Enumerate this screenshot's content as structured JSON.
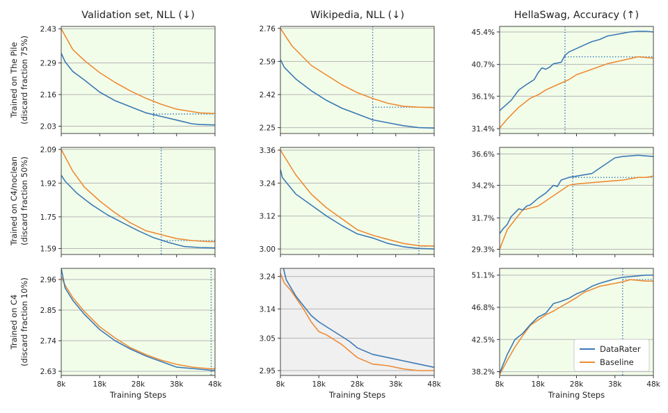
{
  "figure": {
    "column_titles": [
      "Validation set, NLL (↓)",
      "Wikipedia, NLL (↓)",
      "HellaSwag, Accuracy (↑)"
    ],
    "row_labels": [
      [
        "Trained on The Pile",
        "(discard fraction 75%)"
      ],
      [
        "Trained on C4/noclean",
        "(discard fraction 50%)"
      ],
      [
        "Trained on C4",
        "(discard fraction 10%)"
      ]
    ],
    "xlabel": "Training Steps",
    "legend": {
      "placement": "lower-right",
      "entries": [
        "DataRater",
        "Baseline"
      ]
    },
    "colors": {
      "DataRater": "#3a78b5",
      "Baseline": "#ee8a33",
      "bg_better": "#f2fde9",
      "bg_worse": "#f0f0f0",
      "grid": "#b5b5b5",
      "marker": "#3a78b5"
    }
  },
  "chart_data": [
    {
      "type": "line",
      "row": 0,
      "col": 0,
      "xticks": [
        "8k",
        "18k",
        "28k",
        "38k",
        "48k"
      ],
      "yticks": [
        "2.03",
        "2.16",
        "2.29",
        "2.43"
      ],
      "xlim": [
        8,
        48
      ],
      "ylim": [
        2.0,
        2.44
      ],
      "background": "better",
      "match_step": 32,
      "match_value": 2.08,
      "series": [
        {
          "name": "DataRater",
          "x": [
            8,
            9,
            11,
            14,
            18,
            22,
            26,
            30,
            34,
            38,
            42,
            44,
            48
          ],
          "y": [
            2.33,
            2.295,
            2.255,
            2.22,
            2.17,
            2.135,
            2.11,
            2.085,
            2.07,
            2.055,
            2.04,
            2.037,
            2.035
          ]
        },
        {
          "name": "Baseline",
          "x": [
            8,
            11,
            14,
            18,
            22,
            26,
            30,
            34,
            38,
            42,
            44,
            48
          ],
          "y": [
            2.43,
            2.345,
            2.3,
            2.25,
            2.21,
            2.175,
            2.145,
            2.12,
            2.1,
            2.09,
            2.085,
            2.082
          ]
        }
      ]
    },
    {
      "type": "line",
      "row": 0,
      "col": 1,
      "xticks": [
        "8k",
        "18k",
        "28k",
        "38k",
        "48k"
      ],
      "yticks": [
        "2.25",
        "2.42",
        "2.59",
        "2.76"
      ],
      "xlim": [
        8,
        48
      ],
      "ylim": [
        2.22,
        2.77
      ],
      "background": "better",
      "match_step": 32,
      "match_value": 2.355,
      "series": [
        {
          "name": "DataRater",
          "x": [
            8,
            9,
            12,
            16,
            20,
            24,
            28,
            32,
            36,
            40,
            44,
            48
          ],
          "y": [
            2.6,
            2.56,
            2.5,
            2.44,
            2.39,
            2.35,
            2.32,
            2.29,
            2.275,
            2.26,
            2.25,
            2.248
          ]
        },
        {
          "name": "Baseline",
          "x": [
            8,
            11,
            16,
            20,
            24,
            28,
            32,
            36,
            40,
            44,
            48
          ],
          "y": [
            2.76,
            2.67,
            2.57,
            2.52,
            2.47,
            2.43,
            2.4,
            2.375,
            2.36,
            2.355,
            2.353
          ]
        }
      ]
    },
    {
      "type": "line",
      "row": 0,
      "col": 2,
      "xticks": [
        "8k",
        "18k",
        "28k",
        "38k",
        "48k"
      ],
      "yticks": [
        "31.4%",
        "36.1%",
        "40.7%",
        "45.4%"
      ],
      "xlim": [
        8,
        48
      ],
      "ylim": [
        30.7,
        46.2
      ],
      "background": "better",
      "match_step": 25,
      "match_value": 41.8,
      "series": [
        {
          "name": "DataRater",
          "x": [
            8,
            9,
            10,
            11,
            13,
            15,
            17,
            18,
            19,
            20,
            21,
            22,
            24,
            25,
            26,
            28,
            30,
            32,
            34,
            36,
            38,
            40,
            42,
            44,
            46,
            48
          ],
          "y": [
            34.0,
            34.5,
            35.0,
            35.5,
            37.0,
            37.8,
            38.5,
            39.5,
            40.2,
            40.0,
            40.3,
            40.8,
            41.0,
            42.0,
            42.5,
            43.0,
            43.5,
            44.0,
            44.3,
            44.8,
            45.0,
            45.2,
            45.4,
            45.5,
            45.5,
            45.4
          ]
        },
        {
          "name": "Baseline",
          "x": [
            8,
            10,
            13,
            16,
            18,
            20,
            22,
            24,
            26,
            28,
            32,
            36,
            40,
            44,
            48
          ],
          "y": [
            31.5,
            32.8,
            34.5,
            35.8,
            36.3,
            37.0,
            37.5,
            38.0,
            38.5,
            39.2,
            40.0,
            40.8,
            41.3,
            41.8,
            41.6
          ]
        }
      ]
    },
    {
      "type": "line",
      "row": 1,
      "col": 0,
      "xticks": [
        "8k",
        "18k",
        "28k",
        "38k",
        "48k"
      ],
      "yticks": [
        "1.59",
        "1.75",
        "1.92",
        "2.09"
      ],
      "xlim": [
        8,
        48
      ],
      "ylim": [
        1.56,
        2.1
      ],
      "background": "better",
      "match_step": 34,
      "match_value": 1.63,
      "series": [
        {
          "name": "DataRater",
          "x": [
            8,
            9,
            12,
            16,
            20,
            24,
            28,
            32,
            36,
            40,
            44,
            48
          ],
          "y": [
            1.96,
            1.93,
            1.87,
            1.81,
            1.76,
            1.72,
            1.68,
            1.645,
            1.62,
            1.6,
            1.595,
            1.593
          ]
        },
        {
          "name": "Baseline",
          "x": [
            8,
            11,
            14,
            18,
            22,
            26,
            30,
            34,
            38,
            42,
            46,
            48
          ],
          "y": [
            2.09,
            1.98,
            1.9,
            1.83,
            1.77,
            1.72,
            1.68,
            1.66,
            1.64,
            1.63,
            1.625,
            1.625
          ]
        }
      ]
    },
    {
      "type": "line",
      "row": 1,
      "col": 1,
      "xticks": [
        "8k",
        "18k",
        "28k",
        "38k",
        "48k"
      ],
      "yticks": [
        "3.00",
        "3.12",
        "3.24",
        "3.36"
      ],
      "xlim": [
        8,
        48
      ],
      "ylim": [
        2.98,
        3.37
      ],
      "background": "better",
      "match_step": 44,
      "match_value": 3.01,
      "series": [
        {
          "name": "DataRater",
          "x": [
            8,
            8.5,
            12,
            16,
            20,
            24,
            28,
            32,
            36,
            40,
            44,
            48
          ],
          "y": [
            3.29,
            3.26,
            3.2,
            3.16,
            3.12,
            3.085,
            3.055,
            3.04,
            3.02,
            3.008,
            3.002,
            3.0
          ]
        },
        {
          "name": "Baseline",
          "x": [
            8,
            12,
            16,
            20,
            24,
            28,
            32,
            36,
            40,
            44,
            48
          ],
          "y": [
            3.36,
            3.27,
            3.2,
            3.15,
            3.11,
            3.07,
            3.05,
            3.035,
            3.02,
            3.012,
            3.011
          ]
        }
      ]
    },
    {
      "type": "line",
      "row": 1,
      "col": 2,
      "xticks": [
        "8k",
        "18k",
        "28k",
        "38k",
        "48k"
      ],
      "yticks": [
        "29.3%",
        "31.7%",
        "34.2%",
        "36.6%"
      ],
      "xlim": [
        8,
        48
      ],
      "ylim": [
        28.9,
        37.1
      ],
      "background": "better",
      "match_step": 27,
      "match_value": 34.8,
      "series": [
        {
          "name": "DataRater",
          "x": [
            8,
            9,
            10,
            11,
            12,
            13,
            14,
            15,
            16,
            18,
            20,
            22,
            23,
            24,
            25,
            26,
            28,
            30,
            32,
            34,
            36,
            38,
            40,
            42,
            44,
            46,
            48
          ],
          "y": [
            30.5,
            30.9,
            31.2,
            31.8,
            32.1,
            32.4,
            32.3,
            32.6,
            32.7,
            33.2,
            33.6,
            34.2,
            34.1,
            34.6,
            34.7,
            34.8,
            34.9,
            35.0,
            35.1,
            35.5,
            35.9,
            36.3,
            36.4,
            36.45,
            36.5,
            36.45,
            36.4
          ]
        },
        {
          "name": "Baseline",
          "x": [
            8,
            10,
            14,
            18,
            22,
            26,
            28,
            32,
            36,
            40,
            44,
            46,
            48
          ],
          "y": [
            29.3,
            30.8,
            32.3,
            32.6,
            33.4,
            34.2,
            34.3,
            34.4,
            34.5,
            34.6,
            34.8,
            34.8,
            34.9
          ]
        }
      ]
    },
    {
      "type": "line",
      "row": 2,
      "col": 0,
      "xticks": [
        "8k",
        "18k",
        "28k",
        "38k",
        "48k"
      ],
      "yticks": [
        "2.63",
        "2.74",
        "2.85",
        "2.96"
      ],
      "xlim": [
        8,
        48
      ],
      "ylim": [
        2.615,
        3.0
      ],
      "background": "better",
      "match_step": 47,
      "match_value": 2.64,
      "series": [
        {
          "name": "DataRater",
          "x": [
            8,
            9,
            11,
            14,
            18,
            22,
            26,
            30,
            34,
            38,
            42,
            46,
            48
          ],
          "y": [
            3.0,
            2.93,
            2.885,
            2.835,
            2.78,
            2.74,
            2.71,
            2.685,
            2.665,
            2.645,
            2.64,
            2.635,
            2.632
          ]
        },
        {
          "name": "Baseline",
          "x": [
            8,
            9,
            11,
            14,
            18,
            22,
            26,
            30,
            34,
            38,
            42,
            46,
            48
          ],
          "y": [
            2.97,
            2.94,
            2.895,
            2.845,
            2.79,
            2.75,
            2.715,
            2.69,
            2.67,
            2.655,
            2.645,
            2.64,
            2.638
          ]
        }
      ]
    },
    {
      "type": "line",
      "row": 2,
      "col": 1,
      "xticks": [
        "8k",
        "18k",
        "28k",
        "38k",
        "48k"
      ],
      "yticks": [
        "2.95",
        "3.05",
        "3.14",
        "3.24"
      ],
      "xlim": [
        8,
        48
      ],
      "ylim": [
        2.935,
        3.265
      ],
      "background": "worse",
      "series": [
        {
          "name": "DataRater",
          "x": [
            8.8,
            9.5,
            10.5,
            12,
            14,
            16,
            18,
            20,
            22,
            24,
            26,
            28,
            32,
            36,
            40,
            44,
            48
          ],
          "y": [
            3.265,
            3.23,
            3.21,
            3.18,
            3.15,
            3.12,
            3.1,
            3.085,
            3.07,
            3.055,
            3.04,
            3.02,
            3.0,
            2.99,
            2.98,
            2.97,
            2.96
          ]
        },
        {
          "name": "Baseline",
          "x": [
            8,
            9,
            10.5,
            12,
            14,
            16,
            18,
            20,
            22,
            24,
            26,
            28,
            32,
            36,
            40,
            44,
            48
          ],
          "y": [
            3.25,
            3.22,
            3.2,
            3.175,
            3.14,
            3.1,
            3.07,
            3.06,
            3.045,
            3.03,
            3.01,
            2.99,
            2.97,
            2.965,
            2.955,
            2.95,
            2.95
          ]
        }
      ]
    },
    {
      "type": "line",
      "row": 2,
      "col": 2,
      "xticks": [
        "8k",
        "18k",
        "28k",
        "38k",
        "48k"
      ],
      "yticks": [
        "38.2%",
        "42.5%",
        "46.8%",
        "51.1%"
      ],
      "xlim": [
        8,
        48
      ],
      "ylim": [
        37.7,
        52.0
      ],
      "background": "better",
      "match_step": 40,
      "match_value": 50.5,
      "series": [
        {
          "name": "DataRater",
          "x": [
            8,
            10,
            12,
            14,
            16,
            18,
            20,
            22,
            24,
            26,
            28,
            30,
            32,
            34,
            36,
            38,
            40,
            42,
            44,
            46,
            48
          ],
          "y": [
            38.0,
            40.5,
            42.5,
            43.3,
            44.5,
            45.5,
            46.0,
            47.3,
            47.6,
            48.0,
            48.6,
            49.0,
            49.6,
            50.0,
            50.3,
            50.6,
            50.8,
            50.9,
            51.0,
            51.1,
            51.1
          ]
        },
        {
          "name": "Baseline",
          "x": [
            8,
            10,
            12,
            14,
            16,
            18,
            20,
            22,
            24,
            26,
            28,
            30,
            32,
            34,
            36,
            38,
            40,
            42,
            44,
            46,
            48
          ],
          "y": [
            37.8,
            39.7,
            41.5,
            43.0,
            44.4,
            45.1,
            45.8,
            46.3,
            46.9,
            47.5,
            48.1,
            48.8,
            49.2,
            49.6,
            49.8,
            50.0,
            50.2,
            50.5,
            50.4,
            50.3,
            50.3
          ]
        }
      ]
    }
  ]
}
